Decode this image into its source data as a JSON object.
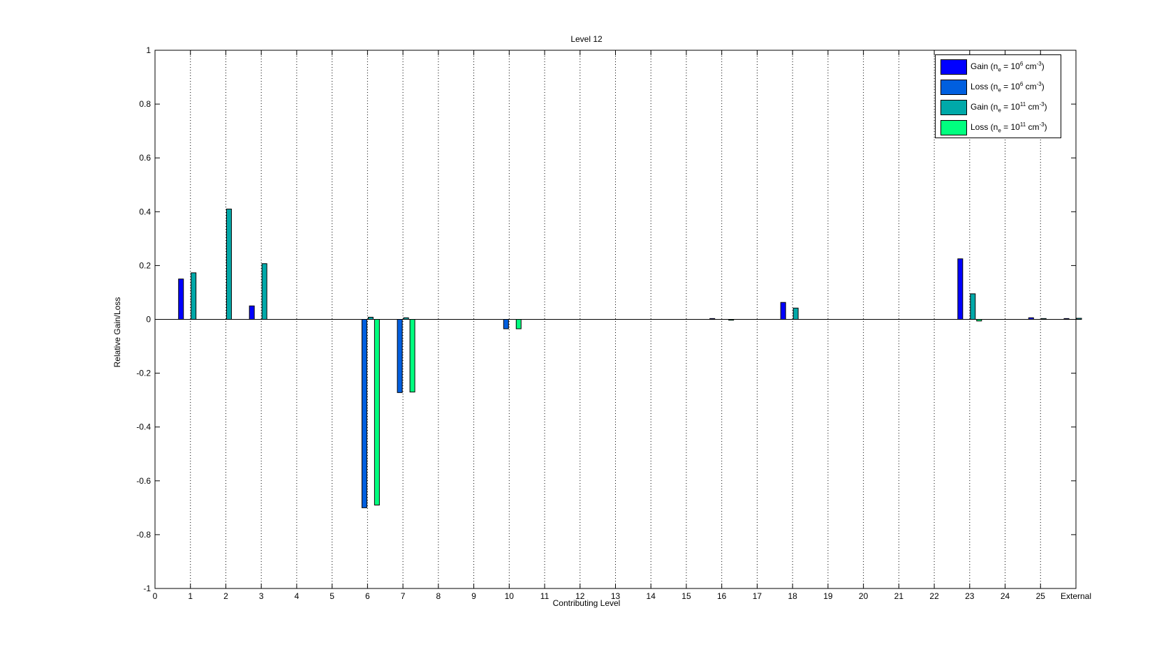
{
  "chart_data": {
    "type": "bar",
    "title": "Level 12",
    "xlabel": "Contributing Level",
    "ylabel": "Relative Gain/Loss",
    "ylim": [
      -1,
      1
    ],
    "yticks": [
      "-1",
      "-0.8",
      "-0.6",
      "-0.4",
      "-0.2",
      "0",
      "0.2",
      "0.4",
      "0.6",
      "0.8",
      "1"
    ],
    "categories": [
      "0",
      "1",
      "2",
      "3",
      "4",
      "5",
      "6",
      "7",
      "8",
      "9",
      "10",
      "11",
      "12",
      "13",
      "14",
      "15",
      "16",
      "17",
      "18",
      "19",
      "20",
      "21",
      "22",
      "23",
      "24",
      "25",
      "External"
    ],
    "grid": "vertical dotted",
    "legend_position": "top-right",
    "series": [
      {
        "name": "Gain (n_e = 10^6 cm^-3)",
        "legend": {
          "base": "Gain (n",
          "sub": "e",
          "mid": " = 10",
          "sup1": "6",
          "unit": " cm",
          "sup2": "-3",
          "end": ")"
        },
        "color": "#0000ff",
        "values": [
          0,
          0.15,
          0,
          0.05,
          0,
          0,
          0,
          0,
          0,
          0,
          0,
          0,
          0,
          0,
          0,
          0,
          0.003,
          0,
          0.063,
          0,
          0,
          0,
          0,
          0.225,
          0,
          0.006,
          0.003
        ]
      },
      {
        "name": "Loss (n_e = 10^6 cm^-3)",
        "legend": {
          "base": "Loss (n",
          "sub": "e",
          "mid": " = 10",
          "sup1": "6",
          "unit": " cm",
          "sup2": "-3",
          "end": ")"
        },
        "color": "#005fdf",
        "values": [
          0,
          0,
          0,
          0,
          0,
          0,
          -0.7,
          -0.272,
          0,
          0,
          -0.035,
          0,
          0,
          0,
          0,
          0,
          0,
          0,
          0,
          0,
          0,
          0,
          0,
          0,
          0,
          0,
          0
        ]
      },
      {
        "name": "Gain (n_e = 10^11 cm^-3)",
        "legend": {
          "base": "Gain (n",
          "sub": "e",
          "mid": " = 10",
          "sup1": "11",
          "unit": " cm",
          "sup2": "-3",
          "end": ")"
        },
        "color": "#00a9a9",
        "values": [
          0,
          0.173,
          0.41,
          0.207,
          0,
          0,
          0.008,
          0.006,
          0,
          0,
          0,
          0,
          0,
          0,
          0,
          0,
          0,
          0,
          0.042,
          0,
          0,
          0,
          0,
          0.095,
          0,
          0.003,
          0.004
        ]
      },
      {
        "name": "Loss (n_e = 10^11 cm^-3)",
        "legend": {
          "base": "Loss (n",
          "sub": "e",
          "mid": " = 10",
          "sup1": "11",
          "unit": " cm",
          "sup2": "-3",
          "end": ")"
        },
        "color": "#00ff7f",
        "values": [
          0,
          0,
          0,
          0,
          0,
          0,
          -0.69,
          -0.27,
          0,
          0,
          -0.035,
          0,
          0,
          0,
          0,
          0,
          -0.003,
          0,
          0,
          0,
          0,
          0,
          0,
          -0.006,
          0,
          0,
          0
        ]
      }
    ]
  }
}
